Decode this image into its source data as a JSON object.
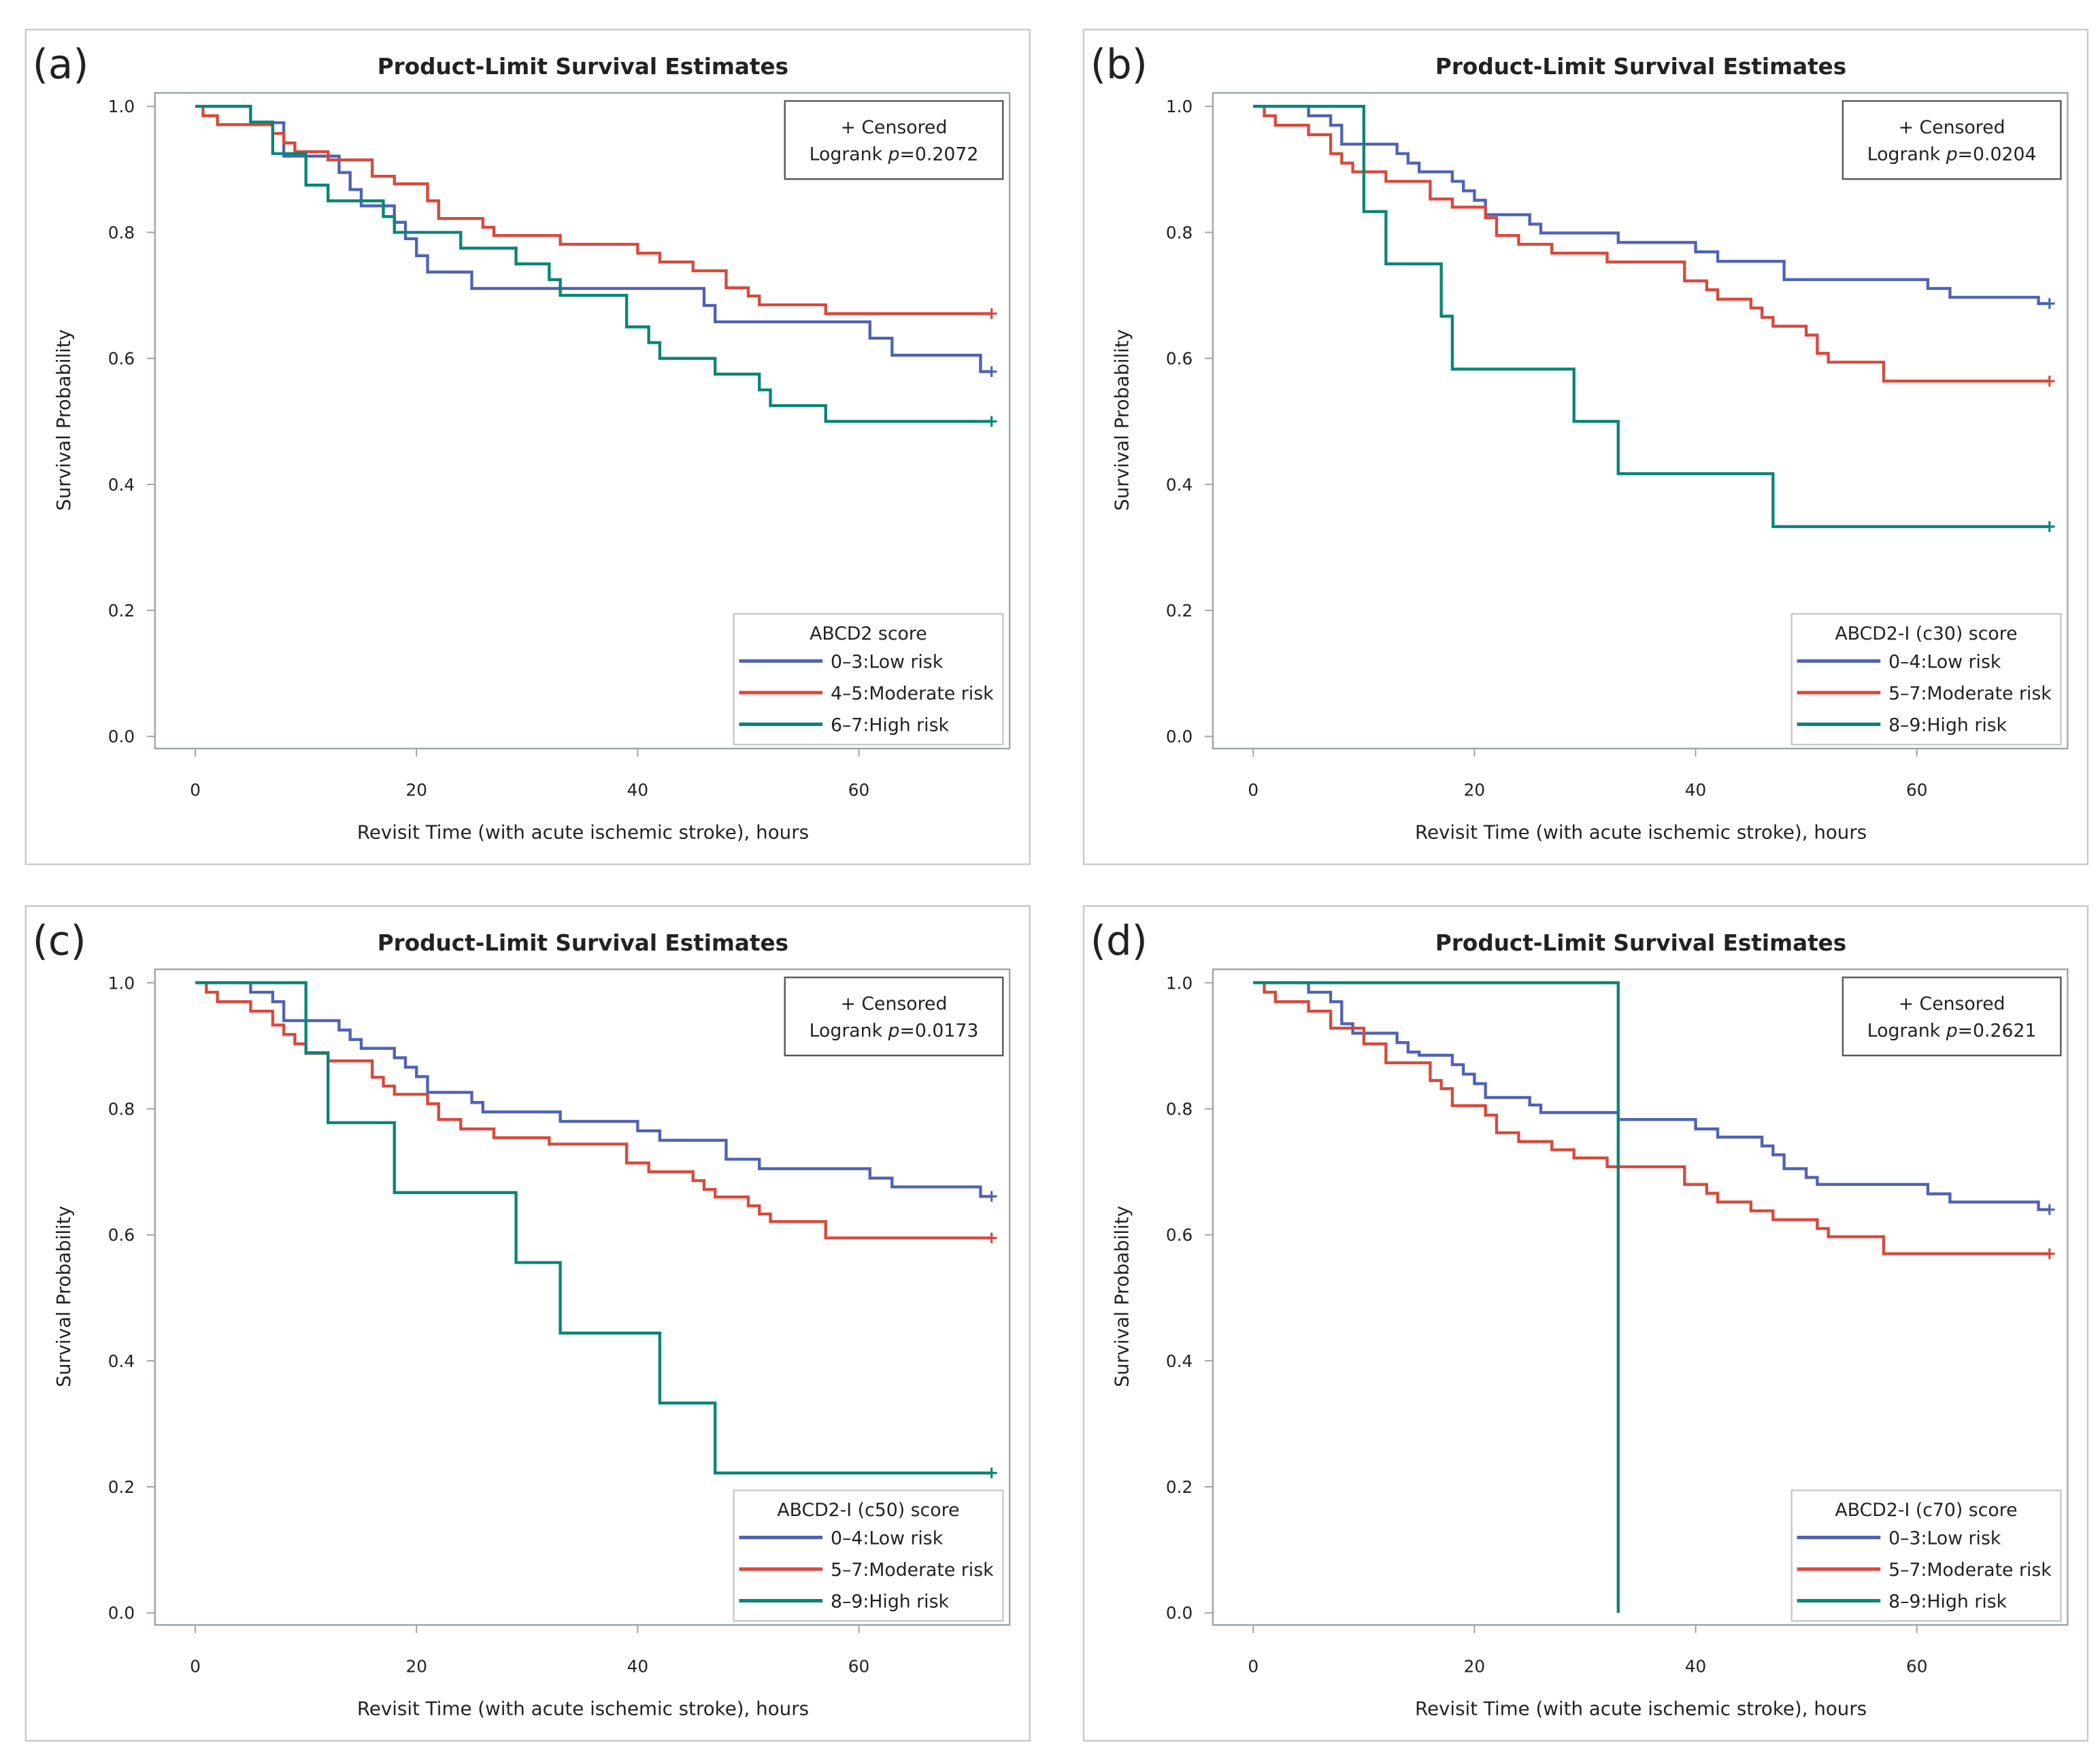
{
  "chart_data": [
    {
      "type": "line",
      "panel_label": "(a)",
      "title": "Product-Limit Survival Estimates",
      "xlabel": "Revisit Time (with acute ischemic stroke), hours",
      "ylabel": "Survival Probability",
      "xlim": [
        -3.7,
        73.5
      ],
      "ylim": [
        -0.02,
        1.02
      ],
      "xticks": [
        "0",
        "20",
        "40",
        "60"
      ],
      "yticks": [
        "0.0",
        "0.2",
        "0.4",
        "0.6",
        "0.8",
        "1.0"
      ],
      "censored_note": "+ Censored",
      "logrank_label": "Logrank ",
      "logrank_p_symbol": "p",
      "logrank_value": "=0.2072",
      "legend_title": "ABCD2 score",
      "series": [
        {
          "name": "0–3:Low risk",
          "color": "#4f63b3",
          "end": 72,
          "censored_at": [
            72
          ],
          "steps": [
            [
              0,
              1
            ],
            [
              5,
              0.974
            ],
            [
              8,
              0.921
            ],
            [
              13,
              0.895
            ],
            [
              14,
              0.868
            ],
            [
              15,
              0.842
            ],
            [
              18,
              0.816
            ],
            [
              19,
              0.79
            ],
            [
              20,
              0.763
            ],
            [
              21,
              0.737
            ],
            [
              25,
              0.711
            ],
            [
              46,
              0.684
            ],
            [
              47,
              0.658
            ],
            [
              61,
              0.632
            ],
            [
              63,
              0.605
            ],
            [
              71,
              0.579
            ]
          ]
        },
        {
          "name": "4–5:Moderate risk",
          "color": "#d64a3d",
          "end": 72,
          "censored_at": [
            72
          ],
          "steps": [
            [
              0,
              1
            ],
            [
              0.7,
              0.985
            ],
            [
              2,
              0.971
            ],
            [
              7,
              0.957
            ],
            [
              8,
              0.942
            ],
            [
              9,
              0.928
            ],
            [
              12,
              0.915
            ],
            [
              16,
              0.889
            ],
            [
              18,
              0.877
            ],
            [
              21,
              0.85
            ],
            [
              22,
              0.822
            ],
            [
              26,
              0.808
            ],
            [
              27,
              0.795
            ],
            [
              33,
              0.781
            ],
            [
              40,
              0.767
            ],
            [
              42,
              0.753
            ],
            [
              45,
              0.739
            ],
            [
              48,
              0.712
            ],
            [
              50,
              0.699
            ],
            [
              51,
              0.685
            ],
            [
              57,
              0.671
            ]
          ]
        },
        {
          "name": "6–7:High risk",
          "color": "#0a8478",
          "end": 72,
          "censored_at": [
            72
          ],
          "steps": [
            [
              0,
              1
            ],
            [
              5,
              0.975
            ],
            [
              7,
              0.925
            ],
            [
              10,
              0.875
            ],
            [
              12,
              0.85
            ],
            [
              17,
              0.825
            ],
            [
              18,
              0.8
            ],
            [
              24,
              0.775
            ],
            [
              29,
              0.75
            ],
            [
              32,
              0.725
            ],
            [
              33,
              0.7
            ],
            [
              39,
              0.65
            ],
            [
              41,
              0.625
            ],
            [
              42,
              0.6
            ],
            [
              47,
              0.575
            ],
            [
              51,
              0.55
            ],
            [
              52,
              0.525
            ],
            [
              57,
              0.5
            ]
          ]
        }
      ]
    },
    {
      "type": "line",
      "panel_label": "(b)",
      "title": "Product-Limit Survival Estimates",
      "xlabel": "Revisit Time (with acute ischemic stroke), hours",
      "ylabel": "Survival Probability",
      "xlim": [
        -3.7,
        73.5
      ],
      "ylim": [
        -0.02,
        1.02
      ],
      "xticks": [
        "0",
        "20",
        "40",
        "60"
      ],
      "yticks": [
        "0.0",
        "0.2",
        "0.4",
        "0.6",
        "0.8",
        "1.0"
      ],
      "censored_note": "+ Censored",
      "logrank_label": "Logrank ",
      "logrank_p_symbol": "p",
      "logrank_value": "=0.0204",
      "legend_title": "ABCD2-I (c30) score",
      "series": [
        {
          "name": "0–4:Low risk",
          "color": "#4f63b3",
          "end": 72,
          "censored_at": [
            72
          ],
          "steps": [
            [
              0,
              1
            ],
            [
              5,
              0.985
            ],
            [
              7,
              0.97
            ],
            [
              8,
              0.94
            ],
            [
              13,
              0.925
            ],
            [
              14,
              0.91
            ],
            [
              15,
              0.896
            ],
            [
              18,
              0.881
            ],
            [
              19,
              0.866
            ],
            [
              20,
              0.851
            ],
            [
              21,
              0.828
            ],
            [
              25,
              0.813
            ],
            [
              26,
              0.799
            ],
            [
              33,
              0.784
            ],
            [
              40,
              0.769
            ],
            [
              42,
              0.754
            ],
            [
              48,
              0.725
            ],
            [
              61,
              0.711
            ],
            [
              63,
              0.697
            ],
            [
              71,
              0.687
            ]
          ]
        },
        {
          "name": "5–7:Moderate risk",
          "color": "#d64a3d",
          "end": 72,
          "censored_at": [
            72
          ],
          "steps": [
            [
              0,
              1
            ],
            [
              1,
              0.985
            ],
            [
              2,
              0.97
            ],
            [
              5,
              0.955
            ],
            [
              7,
              0.925
            ],
            [
              8,
              0.91
            ],
            [
              9,
              0.896
            ],
            [
              12,
              0.881
            ],
            [
              16,
              0.853
            ],
            [
              18,
              0.84
            ],
            [
              21,
              0.823
            ],
            [
              22,
              0.795
            ],
            [
              24,
              0.781
            ],
            [
              27,
              0.767
            ],
            [
              32,
              0.753
            ],
            [
              39,
              0.723
            ],
            [
              41,
              0.709
            ],
            [
              42,
              0.694
            ],
            [
              45,
              0.68
            ],
            [
              46,
              0.665
            ],
            [
              47,
              0.651
            ],
            [
              50,
              0.637
            ],
            [
              51,
              0.608
            ],
            [
              52,
              0.594
            ],
            [
              57,
              0.564
            ]
          ]
        },
        {
          "name": "8–9:High risk",
          "color": "#0a8478",
          "end": 72,
          "censored_at": [
            72
          ],
          "steps": [
            [
              0,
              1
            ],
            [
              10,
              0.833
            ],
            [
              12,
              0.75
            ],
            [
              17,
              0.667
            ],
            [
              18,
              0.583
            ],
            [
              29,
              0.5
            ],
            [
              33,
              0.417
            ],
            [
              47,
              0.333
            ]
          ]
        }
      ]
    },
    {
      "type": "line",
      "panel_label": "(c)",
      "title": "Product-Limit Survival Estimates",
      "xlabel": "Revisit Time (with acute ischemic stroke), hours",
      "ylabel": "Survival Probability",
      "xlim": [
        -3.7,
        73.5
      ],
      "ylim": [
        -0.02,
        1.02
      ],
      "xticks": [
        "0",
        "20",
        "40",
        "60"
      ],
      "yticks": [
        "0.0",
        "0.2",
        "0.4",
        "0.6",
        "0.8",
        "1.0"
      ],
      "censored_note": "+ Censored",
      "logrank_label": "Logrank ",
      "logrank_p_symbol": "p",
      "logrank_value": "=0.0173",
      "legend_title": "ABCD2-I (c50) score",
      "series": [
        {
          "name": "0–4:Low risk",
          "color": "#4f63b3",
          "end": 72,
          "censored_at": [
            72
          ],
          "steps": [
            [
              0,
              1
            ],
            [
              5,
              0.985
            ],
            [
              7,
              0.97
            ],
            [
              8,
              0.94
            ],
            [
              13,
              0.925
            ],
            [
              14,
              0.91
            ],
            [
              15,
              0.896
            ],
            [
              18,
              0.881
            ],
            [
              19,
              0.866
            ],
            [
              20,
              0.851
            ],
            [
              21,
              0.826
            ],
            [
              25,
              0.81
            ],
            [
              26,
              0.795
            ],
            [
              33,
              0.78
            ],
            [
              40,
              0.765
            ],
            [
              42,
              0.75
            ],
            [
              48,
              0.72
            ],
            [
              51,
              0.705
            ],
            [
              61,
              0.69
            ],
            [
              63,
              0.676
            ],
            [
              71,
              0.661
            ]
          ]
        },
        {
          "name": "5–7:Moderate risk",
          "color": "#d64a3d",
          "end": 72,
          "censored_at": [
            72
          ],
          "steps": [
            [
              0,
              1
            ],
            [
              1,
              0.985
            ],
            [
              2,
              0.97
            ],
            [
              5,
              0.955
            ],
            [
              7,
              0.933
            ],
            [
              8,
              0.918
            ],
            [
              9,
              0.903
            ],
            [
              10,
              0.888
            ],
            [
              12,
              0.876
            ],
            [
              16,
              0.85
            ],
            [
              17,
              0.836
            ],
            [
              18,
              0.823
            ],
            [
              21,
              0.808
            ],
            [
              22,
              0.783
            ],
            [
              24,
              0.768
            ],
            [
              27,
              0.754
            ],
            [
              32,
              0.744
            ],
            [
              39,
              0.714
            ],
            [
              41,
              0.7
            ],
            [
              45,
              0.686
            ],
            [
              46,
              0.672
            ],
            [
              47,
              0.66
            ],
            [
              50,
              0.646
            ],
            [
              51,
              0.633
            ],
            [
              52,
              0.621
            ],
            [
              57,
              0.595
            ]
          ]
        },
        {
          "name": "8–9:High risk",
          "color": "#0a8478",
          "end": 72,
          "censored_at": [
            72
          ],
          "steps": [
            [
              0,
              1
            ],
            [
              10,
              0.889
            ],
            [
              12,
              0.778
            ],
            [
              18,
              0.667
            ],
            [
              29,
              0.556
            ],
            [
              33,
              0.444
            ],
            [
              42,
              0.333
            ],
            [
              47,
              0.222
            ]
          ]
        }
      ]
    },
    {
      "type": "line",
      "panel_label": "(d)",
      "title": "Product-Limit Survival Estimates",
      "xlabel": "Revisit Time (with acute ischemic stroke), hours",
      "ylabel": "Survival Probability",
      "xlim": [
        -3.7,
        73.5
      ],
      "ylim": [
        -0.02,
        1.02
      ],
      "xticks": [
        "0",
        "20",
        "40",
        "60"
      ],
      "yticks": [
        "0.0",
        "0.2",
        "0.4",
        "0.6",
        "0.8",
        "1.0"
      ],
      "censored_note": "+ Censored",
      "logrank_label": "Logrank ",
      "logrank_p_symbol": "p",
      "logrank_value": "=0.2621",
      "legend_title": "ABCD2-I (c70) score",
      "series": [
        {
          "name": "0–3:Low risk",
          "color": "#4f63b3",
          "end": 72,
          "censored_at": [
            72
          ],
          "steps": [
            [
              0,
              1
            ],
            [
              5,
              0.985
            ],
            [
              7,
              0.97
            ],
            [
              8,
              0.935
            ],
            [
              9,
              0.92
            ],
            [
              13,
              0.905
            ],
            [
              14,
              0.89
            ],
            [
              15,
              0.885
            ],
            [
              18,
              0.87
            ],
            [
              19,
              0.855
            ],
            [
              20,
              0.84
            ],
            [
              21,
              0.818
            ],
            [
              25,
              0.806
            ],
            [
              26,
              0.794
            ],
            [
              33,
              0.783
            ],
            [
              40,
              0.768
            ],
            [
              42,
              0.755
            ],
            [
              46,
              0.741
            ],
            [
              47,
              0.727
            ],
            [
              48,
              0.705
            ],
            [
              50,
              0.691
            ],
            [
              51,
              0.68
            ],
            [
              61,
              0.665
            ],
            [
              63,
              0.652
            ],
            [
              71,
              0.64
            ]
          ]
        },
        {
          "name": "5–7:Moderate risk",
          "color": "#d64a3d",
          "end": 72,
          "censored_at": [
            72
          ],
          "steps": [
            [
              0,
              1
            ],
            [
              1,
              0.985
            ],
            [
              2,
              0.97
            ],
            [
              5,
              0.955
            ],
            [
              7,
              0.928
            ],
            [
              10,
              0.903
            ],
            [
              12,
              0.873
            ],
            [
              16,
              0.845
            ],
            [
              17,
              0.832
            ],
            [
              18,
              0.805
            ],
            [
              21,
              0.79
            ],
            [
              22,
              0.762
            ],
            [
              24,
              0.748
            ],
            [
              27,
              0.735
            ],
            [
              29,
              0.722
            ],
            [
              32,
              0.708
            ],
            [
              39,
              0.68
            ],
            [
              41,
              0.666
            ],
            [
              42,
              0.652
            ],
            [
              45,
              0.638
            ],
            [
              47,
              0.624
            ],
            [
              51,
              0.61
            ],
            [
              52,
              0.597
            ],
            [
              57,
              0.57
            ]
          ]
        },
        {
          "name": "8–9:High risk",
          "color": "#0a8478",
          "end": 33,
          "censored_at": [],
          "steps": [
            [
              0,
              1
            ],
            [
              33,
              0
            ]
          ]
        }
      ]
    }
  ]
}
